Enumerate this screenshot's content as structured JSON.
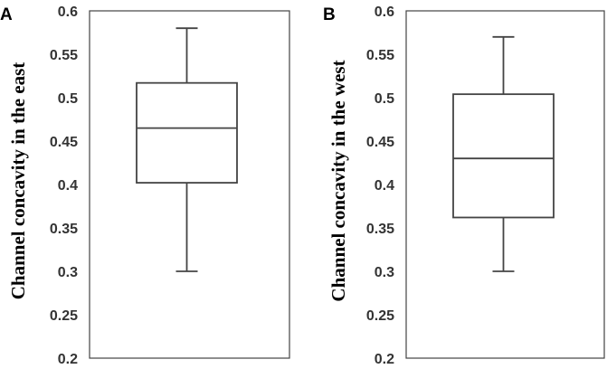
{
  "chart_data": [
    {
      "type": "box",
      "panel_label": "A",
      "ylabel": "Channel concavity in the east",
      "ylim": [
        0.2,
        0.6
      ],
      "yticks": [
        "0.2",
        "0.25",
        "0.3",
        "0.35",
        "0.4",
        "0.45",
        "0.5",
        "0.55",
        "0.6"
      ],
      "grid": false,
      "box": {
        "min": 0.3,
        "q1": 0.402,
        "median": 0.465,
        "q3": 0.517,
        "max": 0.58
      }
    },
    {
      "type": "box",
      "panel_label": "B",
      "ylabel": "Channel concavity in the west",
      "ylim": [
        0.2,
        0.6
      ],
      "yticks": [
        "0.2",
        "0.25",
        "0.3",
        "0.35",
        "0.4",
        "0.45",
        "0.5",
        "0.55",
        "0.6"
      ],
      "grid": false,
      "box": {
        "min": 0.3,
        "q1": 0.362,
        "median": 0.43,
        "q3": 0.504,
        "max": 0.57
      }
    }
  ]
}
